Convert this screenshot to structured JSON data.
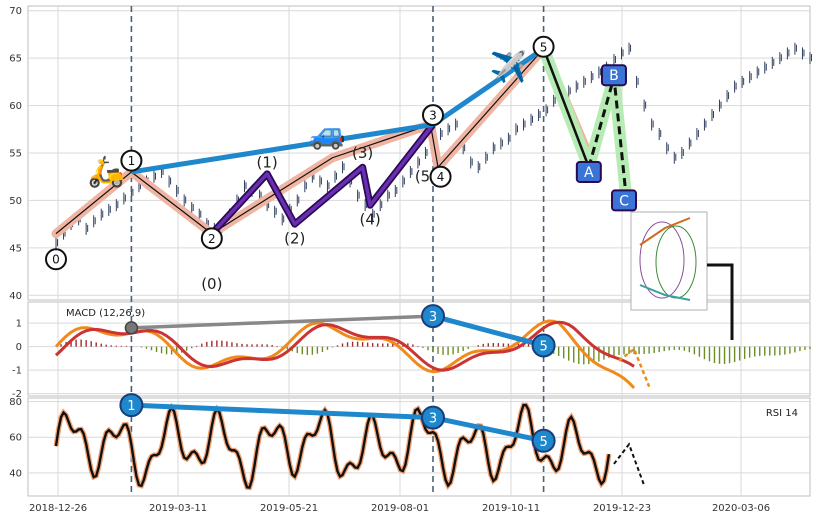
{
  "chart_data": {
    "type": "line",
    "x_dates": [
      "2018-12-26",
      "2019-03-11",
      "2019-05-21",
      "2019-08-01",
      "2019-10-11",
      "2019-12-23",
      "2020-03-06"
    ],
    "colors": {
      "grid": "#d9d9d9",
      "frame": "#bfbfbf",
      "candle": "#2f3f5f",
      "vline": "#4a6076",
      "elliott_thin": "#111111",
      "elliott_band": "#f0b4a2",
      "elliott_sub": "#4b1a87",
      "trend": "#1f88cc",
      "corr_band": "#b6ebb4",
      "corr_line": "#111111",
      "corr_box": "#3a74d6",
      "macd": "#f08a1a",
      "signal": "#cc3333",
      "hist_pos": "#a52a2a",
      "hist_neg": "#6b8e23",
      "rsi": "#111111",
      "rsi_glow": "#f3a070",
      "grey_link": "#888888"
    },
    "panels": [
      {
        "name": "price",
        "ylim": [
          39.5,
          70.5
        ],
        "yticks": [
          40,
          45,
          50,
          55,
          60,
          65,
          70
        ],
        "series": [
          {
            "name": "price",
            "x": [
              0,
              3,
              6,
              9,
              12,
              15,
              18,
              21,
              24,
              27,
              30,
              33,
              36,
              39,
              42,
              45,
              48,
              51,
              54,
              57,
              60,
              63,
              66,
              69,
              72,
              75,
              78,
              81,
              84,
              87,
              90,
              93,
              96,
              99,
              102,
              105,
              108,
              111,
              114,
              117,
              120,
              123,
              126,
              129,
              132,
              135,
              138,
              141,
              144,
              147,
              150,
              153,
              156,
              159,
              162,
              165,
              168,
              171,
              174,
              177,
              180,
              183,
              186,
              189,
              192,
              195,
              198,
              201,
              204,
              207,
              210,
              213,
              216,
              219,
              222,
              225,
              228,
              231,
              234,
              237,
              240,
              243,
              246,
              249,
              252,
              255,
              258,
              261,
              264,
              267,
              270,
              273,
              276,
              279,
              282,
              285,
              288,
              291,
              294,
              297,
              300
            ],
            "y": [
              45.5,
              46.5,
              47.5,
              48.0,
              47.0,
              47.8,
              48.5,
              49.0,
              49.5,
              50.2,
              50.8,
              51.5,
              52.0,
              52.5,
              53.0,
              52.0,
              51.0,
              50.0,
              49.2,
              48.5,
              47.5,
              47.0,
              47.2,
              48.5,
              50.0,
              51.5,
              51.0,
              50.5,
              49.5,
              48.8,
              48.0,
              49.0,
              50.0,
              51.5,
              52.5,
              52.0,
              51.5,
              52.5,
              53.5,
              52.0,
              50.5,
              49.5,
              48.5,
              49.5,
              50.5,
              51.0,
              52.0,
              53.0,
              54.0,
              55.0,
              56.0,
              57.0,
              57.5,
              58.0,
              55.5,
              54.0,
              53.5,
              54.5,
              55.5,
              56.0,
              56.5,
              57.5,
              58.0,
              58.5,
              59.0,
              59.5,
              60.5,
              61.0,
              61.5,
              62.0,
              62.5,
              63.0,
              63.5,
              64.0,
              64.8,
              65.5,
              66.0,
              62.5,
              60.0,
              58.0,
              57.0,
              55.5,
              54.5,
              55.0,
              56.0,
              57.0,
              58.0,
              59.0,
              60.0,
              61.0,
              62.0,
              62.5,
              63.0,
              63.5,
              64.0,
              64.5,
              65.0,
              65.5,
              66.0,
              65.5,
              65.0
            ]
          },
          {
            "name": "elliott",
            "x": [
              0,
              30,
              62,
              110,
              149,
              152,
              194,
              214,
              219,
              228,
              234
            ],
            "y": [
              46.5,
              53,
              46.5,
              54.5,
              58,
              53.5,
              66,
              53.5,
              63,
              50,
              50
            ]
          }
        ],
        "waves": [
          {
            "label": "0",
            "x": 0,
            "y": 43.8
          },
          {
            "label": "1",
            "x": 30,
            "y": 54.2
          },
          {
            "label": "2",
            "x": 62,
            "y": 46.0
          },
          {
            "label": "(0)",
            "x": 62,
            "y": 41.2
          },
          {
            "label": "(1)",
            "x": 84,
            "y": 54.0
          },
          {
            "label": "(2)",
            "x": 95,
            "y": 46.0
          },
          {
            "label": "(3)",
            "x": 122,
            "y": 55.0
          },
          {
            "label": "(4)",
            "x": 125,
            "y": 48.0
          },
          {
            "label": "3",
            "x": 150,
            "y": 59.0
          },
          {
            "label": "(5)",
            "x": 147,
            "y": 52.5
          },
          {
            "label": "4",
            "x": 153,
            "y": 52.5
          },
          {
            "label": "5",
            "x": 194,
            "y": 66.2
          }
        ],
        "corrections": [
          {
            "label": "A",
            "x": 212,
            "y": 53.0
          },
          {
            "label": "B",
            "x": 222,
            "y": 63.2
          },
          {
            "label": "C",
            "x": 226,
            "y": 50.0
          }
        ]
      },
      {
        "name": "macd",
        "title": "MACD (12,26,9)",
        "ylim": [
          -2.1,
          1.9
        ],
        "yticks": [
          -2,
          -1,
          0,
          1
        ],
        "marks": [
          {
            "label": "3",
            "x": 150,
            "y": 1.3
          },
          {
            "label": "5",
            "x": 194,
            "y": 0.05
          }
        ]
      },
      {
        "name": "rsi",
        "title": "RSI 14",
        "ylim": [
          27,
          82
        ],
        "yticks": [
          40,
          60,
          80
        ],
        "marks": [
          {
            "label": "1",
            "x": 30,
            "y": 78
          },
          {
            "label": "3",
            "x": 150,
            "y": 71
          },
          {
            "label": "5",
            "x": 194,
            "y": 58
          }
        ]
      }
    ],
    "vlines": [
      30,
      150,
      194
    ],
    "icons": [
      {
        "name": "scooter",
        "glyph": "🛵",
        "x": 20,
        "y": 52
      },
      {
        "name": "car",
        "glyph": "🚙",
        "x": 108,
        "y": 56
      },
      {
        "name": "airplane",
        "glyph": "✈️",
        "x": 180,
        "y": 63
      }
    ]
  }
}
